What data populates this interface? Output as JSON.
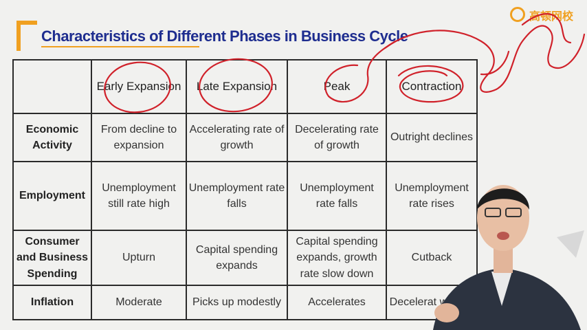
{
  "title": "Characteristics of Different Phases in Business Cycle",
  "logo_text": "高顿网校",
  "table": {
    "headers": [
      "",
      "Early Expansion",
      "Late Expansion",
      "Peak",
      "Contraction"
    ],
    "rows": [
      {
        "label": "Economic Activity",
        "cells": [
          "From decline to expansion",
          "Accelerating rate of growth",
          "Decelerating rate of growth",
          "Outright declines"
        ]
      },
      {
        "label": "Employment",
        "cells": [
          "Unemployment still rate high",
          "Unemployment rate falls",
          "Unemployment rate falls",
          "Unemployment rate rises"
        ]
      },
      {
        "label": "Consumer and Business Spending",
        "cells": [
          "Upturn",
          "Capital spending expands",
          "Capital spending expands, growth rate slow down",
          "Cutback"
        ]
      },
      {
        "label": "Inflation",
        "cells": [
          "Moderate",
          "Picks up modestly",
          "Accelerates",
          "Decelerat with a l"
        ]
      }
    ]
  },
  "colors": {
    "title": "#1e2d8f",
    "accent": "#f0a020",
    "highlight_label": "#d01a22",
    "ink": "#d0212a"
  }
}
